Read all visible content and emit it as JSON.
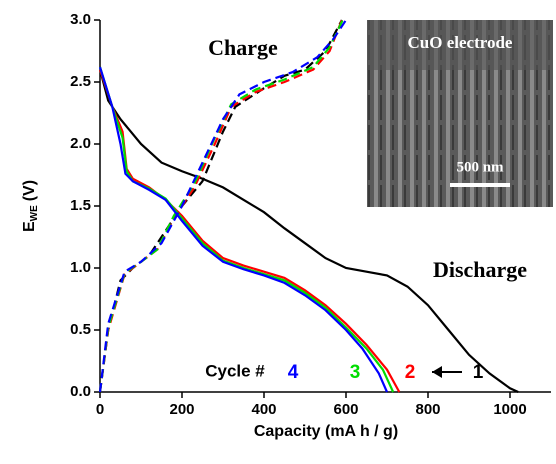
{
  "chart_data": {
    "type": "line",
    "x_label": "Capacity (mA h / g)",
    "y_label": {
      "main": "E",
      "sub": "WE",
      "unit": "(V)"
    },
    "xlim": [
      0,
      1100
    ],
    "ylim": [
      0,
      3
    ],
    "xticks": [
      0,
      200,
      400,
      600,
      800,
      1000
    ],
    "yticks": [
      {
        "value": 0,
        "label": "0.0"
      },
      {
        "value": 0.5,
        "label": "0.5"
      },
      {
        "value": 1,
        "label": "1.0"
      },
      {
        "value": 1.5,
        "label": "1.5"
      },
      {
        "value": 2,
        "label": "2.0"
      },
      {
        "value": 2.5,
        "label": "2.5"
      },
      {
        "value": 3,
        "label": "3.0"
      }
    ],
    "annotations": {
      "charge": "Charge",
      "discharge": "Discharge",
      "legend_title": "Cycle #",
      "inset_title": "CuO electrode",
      "scale_bar": "500 nm"
    },
    "series": [
      {
        "name": "1",
        "color": "#000000",
        "x": [
          0,
          20,
          50,
          100,
          150,
          200,
          250,
          300,
          350,
          400,
          450,
          500,
          550,
          600,
          650,
          700,
          750,
          800,
          850,
          900,
          950,
          1000,
          1020
        ],
        "values": [
          2.6,
          2.35,
          2.2,
          2.0,
          1.85,
          1.78,
          1.72,
          1.65,
          1.55,
          1.45,
          1.32,
          1.2,
          1.08,
          1.0,
          0.97,
          0.94,
          0.85,
          0.7,
          0.5,
          0.3,
          0.15,
          0.03,
          0
        ],
        "charge_x": [
          0,
          20,
          50,
          80,
          120,
          160,
          200,
          250,
          300,
          330,
          400,
          450,
          500,
          550,
          590
        ],
        "charge_values": [
          0,
          0.5,
          0.9,
          1.0,
          1.1,
          1.3,
          1.5,
          1.7,
          2.1,
          2.3,
          2.45,
          2.55,
          2.6,
          2.75,
          3.0
        ]
      },
      {
        "name": "2",
        "color": "#ff0000",
        "x": [
          0,
          30,
          55,
          65,
          80,
          120,
          160,
          200,
          250,
          300,
          350,
          400,
          450,
          500,
          550,
          600,
          650,
          700,
          730
        ],
        "values": [
          2.6,
          2.3,
          2.1,
          1.8,
          1.72,
          1.65,
          1.55,
          1.42,
          1.22,
          1.08,
          1.02,
          0.97,
          0.92,
          0.82,
          0.7,
          0.55,
          0.38,
          0.18,
          0
        ],
        "charge_x": [
          0,
          20,
          60,
          100,
          140,
          180,
          230,
          280,
          320,
          380,
          450,
          520,
          560,
          590
        ],
        "charge_values": [
          0,
          0.5,
          0.95,
          1.05,
          1.15,
          1.4,
          1.65,
          2.0,
          2.3,
          2.42,
          2.5,
          2.6,
          2.75,
          3.0
        ]
      },
      {
        "name": "3",
        "color": "#00dd00",
        "x": [
          0,
          30,
          55,
          65,
          80,
          120,
          160,
          200,
          250,
          300,
          350,
          400,
          450,
          500,
          550,
          600,
          650,
          690,
          715
        ],
        "values": [
          2.62,
          2.3,
          2.05,
          1.78,
          1.7,
          1.64,
          1.56,
          1.4,
          1.2,
          1.06,
          1.0,
          0.95,
          0.9,
          0.8,
          0.68,
          0.52,
          0.35,
          0.18,
          0
        ],
        "charge_x": [
          0,
          20,
          60,
          100,
          140,
          180,
          230,
          280,
          320,
          380,
          450,
          520,
          560,
          592
        ],
        "charge_values": [
          0,
          0.52,
          0.96,
          1.05,
          1.15,
          1.42,
          1.68,
          2.05,
          2.32,
          2.44,
          2.52,
          2.62,
          2.78,
          3.0
        ]
      },
      {
        "name": "4",
        "color": "#0000ff",
        "x": [
          0,
          30,
          50,
          62,
          80,
          120,
          160,
          200,
          250,
          300,
          350,
          400,
          450,
          500,
          550,
          600,
          640,
          680,
          700
        ],
        "values": [
          2.62,
          2.3,
          2.0,
          1.76,
          1.7,
          1.63,
          1.55,
          1.38,
          1.18,
          1.05,
          0.99,
          0.94,
          0.88,
          0.78,
          0.66,
          0.5,
          0.35,
          0.15,
          0
        ],
        "charge_x": [
          0,
          20,
          60,
          100,
          150,
          200,
          250,
          300,
          340,
          400,
          470,
          530,
          570,
          600
        ],
        "charge_values": [
          0,
          0.55,
          0.97,
          1.05,
          1.2,
          1.5,
          1.85,
          2.2,
          2.4,
          2.5,
          2.58,
          2.7,
          2.85,
          3.0
        ]
      }
    ]
  }
}
